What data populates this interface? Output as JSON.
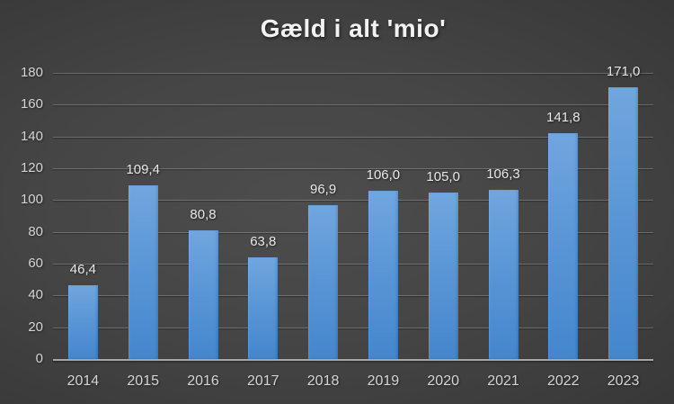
{
  "chart_data": {
    "type": "bar",
    "title": "Gæld i alt 'mio'",
    "categories": [
      "2014",
      "2015",
      "2016",
      "2017",
      "2018",
      "2019",
      "2020",
      "2021",
      "2022",
      "2023"
    ],
    "values": [
      46.4,
      109.4,
      80.8,
      63.8,
      96.9,
      106.0,
      105.0,
      106.3,
      141.8,
      171.0
    ],
    "value_labels": [
      "46,4",
      "109,4",
      "80,8",
      "63,8",
      "96,9",
      "106,0",
      "105,0",
      "106,3",
      "141,8",
      "171,0"
    ],
    "xlabel": "",
    "ylabel": "",
    "ylim": [
      0,
      180
    ],
    "ytick_step": 20,
    "yticks": [
      "0",
      "20",
      "40",
      "60",
      "80",
      "100",
      "120",
      "140",
      "160",
      "180"
    ],
    "grid": true,
    "legend": false,
    "decimal_separator": ","
  },
  "colors": {
    "bar_top": "#71a6df",
    "bar_bottom": "#4486cd",
    "background_center": "#4d4d4d",
    "background_edge": "#222222",
    "gridline": "rgba(255,255,255,0.22)",
    "axis_line": "#a6a6a6",
    "tick_text": "#d4d4d4",
    "title_text": "#f2f2f2"
  }
}
